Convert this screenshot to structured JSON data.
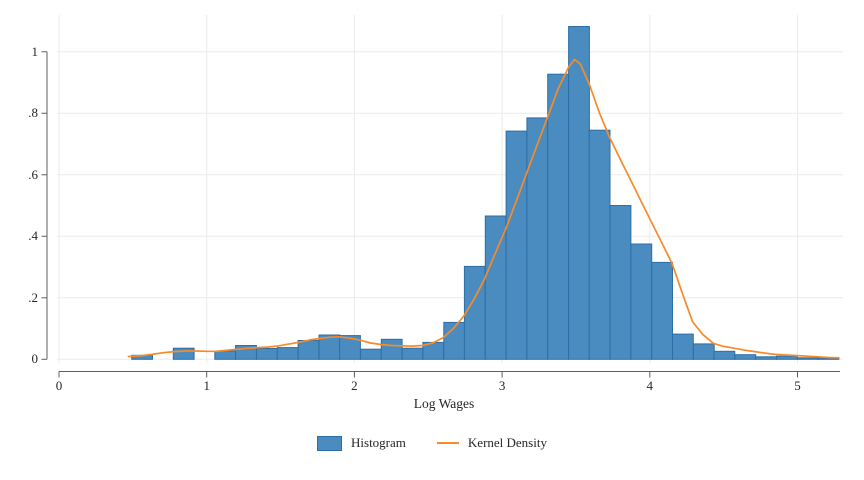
{
  "chart_data": {
    "type": "bar",
    "subtype": "histogram-with-kernel-density",
    "title": "",
    "xlabel": "Log Wages",
    "ylabel": "",
    "legend": [
      "Histogram",
      "Kernel Density"
    ],
    "legend_position": "bottom-center",
    "grid": "on",
    "x_tick_labels": [
      "0",
      "1",
      "2",
      "3",
      "4",
      "5"
    ],
    "x_tick_values": [
      0,
      1,
      2,
      3,
      4,
      5
    ],
    "y_tick_labels": [
      "0",
      ".2",
      ".4",
      ".6",
      ".8",
      "1"
    ],
    "y_tick_values": [
      0,
      0.2,
      0.4,
      0.6,
      0.8,
      1
    ],
    "xlim": [
      0,
      5.285
    ],
    "ylim": [
      0,
      1.12
    ],
    "bin_width": 0.1408,
    "bins": [
      {
        "x": 0.492,
        "h": 0.013
      },
      {
        "x": 0.633,
        "h": 0
      },
      {
        "x": 0.774,
        "h": 0.036
      },
      {
        "x": 0.915,
        "h": 0
      },
      {
        "x": 1.055,
        "h": 0.027
      },
      {
        "x": 1.196,
        "h": 0.045
      },
      {
        "x": 1.337,
        "h": 0.035
      },
      {
        "x": 1.478,
        "h": 0.038
      },
      {
        "x": 1.619,
        "h": 0.061
      },
      {
        "x": 1.76,
        "h": 0.079
      },
      {
        "x": 1.9,
        "h": 0.077
      },
      {
        "x": 2.041,
        "h": 0.033
      },
      {
        "x": 2.182,
        "h": 0.065
      },
      {
        "x": 2.323,
        "h": 0.036
      },
      {
        "x": 2.464,
        "h": 0.055
      },
      {
        "x": 2.605,
        "h": 0.12
      },
      {
        "x": 2.745,
        "h": 0.302
      },
      {
        "x": 2.886,
        "h": 0.466
      },
      {
        "x": 3.027,
        "h": 0.742
      },
      {
        "x": 3.168,
        "h": 0.785
      },
      {
        "x": 3.309,
        "h": 0.927
      },
      {
        "x": 3.45,
        "h": 1.082
      },
      {
        "x": 3.59,
        "h": 0.745
      },
      {
        "x": 3.731,
        "h": 0.5
      },
      {
        "x": 3.872,
        "h": 0.375
      },
      {
        "x": 4.013,
        "h": 0.315
      },
      {
        "x": 4.154,
        "h": 0.082
      },
      {
        "x": 4.295,
        "h": 0.05
      },
      {
        "x": 4.435,
        "h": 0.026
      },
      {
        "x": 4.576,
        "h": 0.015
      },
      {
        "x": 4.717,
        "h": 0.008
      },
      {
        "x": 4.858,
        "h": 0.01
      },
      {
        "x": 4.999,
        "h": 0.005
      },
      {
        "x": 5.139,
        "h": 0.004
      }
    ],
    "kde": [
      [
        0.47,
        0.009
      ],
      [
        0.56,
        0.012
      ],
      [
        0.63,
        0.016
      ],
      [
        0.7,
        0.021
      ],
      [
        0.78,
        0.025
      ],
      [
        0.85,
        0.027
      ],
      [
        0.92,
        0.027
      ],
      [
        1.0,
        0.026
      ],
      [
        1.06,
        0.026
      ],
      [
        1.13,
        0.029
      ],
      [
        1.21,
        0.033
      ],
      [
        1.28,
        0.036
      ],
      [
        1.35,
        0.038
      ],
      [
        1.42,
        0.04
      ],
      [
        1.49,
        0.044
      ],
      [
        1.56,
        0.05
      ],
      [
        1.63,
        0.056
      ],
      [
        1.7,
        0.063
      ],
      [
        1.77,
        0.068
      ],
      [
        1.84,
        0.072
      ],
      [
        1.9,
        0.073
      ],
      [
        1.97,
        0.069
      ],
      [
        2.04,
        0.062
      ],
      [
        2.11,
        0.053
      ],
      [
        2.18,
        0.048
      ],
      [
        2.25,
        0.045
      ],
      [
        2.32,
        0.044
      ],
      [
        2.39,
        0.043
      ],
      [
        2.46,
        0.045
      ],
      [
        2.53,
        0.053
      ],
      [
        2.6,
        0.07
      ],
      [
        2.67,
        0.1
      ],
      [
        2.74,
        0.14
      ],
      [
        2.81,
        0.195
      ],
      [
        2.88,
        0.26
      ],
      [
        2.95,
        0.34
      ],
      [
        3.03,
        0.43
      ],
      [
        3.1,
        0.52
      ],
      [
        3.17,
        0.61
      ],
      [
        3.24,
        0.7
      ],
      [
        3.31,
        0.79
      ],
      [
        3.38,
        0.88
      ],
      [
        3.45,
        0.95
      ],
      [
        3.49,
        0.975
      ],
      [
        3.53,
        0.96
      ],
      [
        3.59,
        0.895
      ],
      [
        3.66,
        0.8
      ],
      [
        3.73,
        0.72
      ],
      [
        3.8,
        0.65
      ],
      [
        3.87,
        0.583
      ],
      [
        3.94,
        0.515
      ],
      [
        4.01,
        0.447
      ],
      [
        4.08,
        0.38
      ],
      [
        4.15,
        0.312
      ],
      [
        4.22,
        0.215
      ],
      [
        4.29,
        0.122
      ],
      [
        4.36,
        0.08
      ],
      [
        4.43,
        0.052
      ],
      [
        4.5,
        0.042
      ],
      [
        4.57,
        0.036
      ],
      [
        4.64,
        0.03
      ],
      [
        4.71,
        0.025
      ],
      [
        4.78,
        0.02
      ],
      [
        4.85,
        0.016
      ],
      [
        4.92,
        0.014
      ],
      [
        5.0,
        0.012
      ],
      [
        5.07,
        0.01
      ],
      [
        5.14,
        0.008
      ],
      [
        5.21,
        0.006
      ],
      [
        5.28,
        0.005
      ]
    ],
    "colors": {
      "bar_fill": "#4a8bc0",
      "bar_edge": "#2d6ea6",
      "kde_line": "#f78b29",
      "gridline": "#ebebeb",
      "axis_line": "#5f5f5f",
      "text": "#262626",
      "background": "#ffffff"
    }
  }
}
